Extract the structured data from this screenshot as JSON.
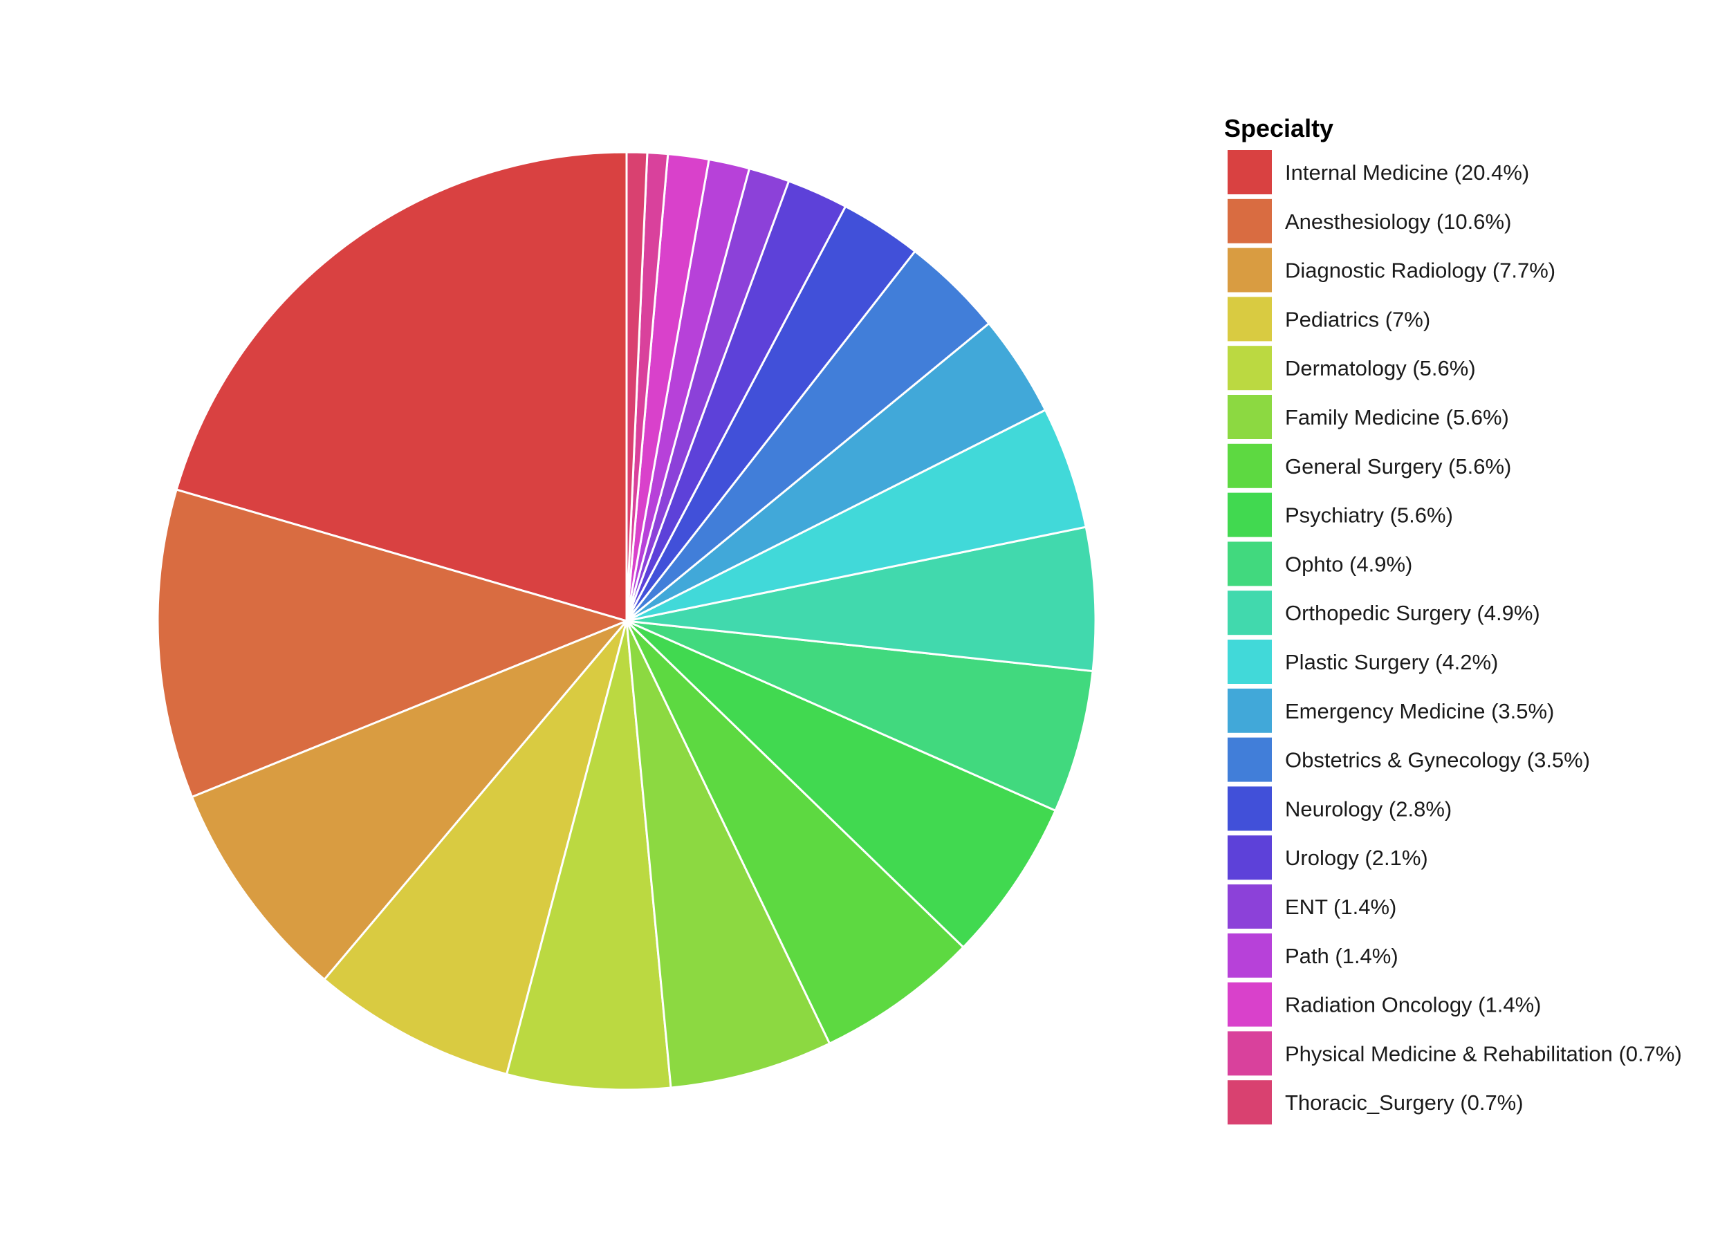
{
  "chart_data": {
    "type": "pie",
    "legend_title": "Specialty",
    "legend_position": "right",
    "start_angle": "12 o'clock",
    "direction": "counterclockwise",
    "slices": [
      {
        "label": "Internal Medicine (20.4%)",
        "value": 20.4,
        "color": "#D94141"
      },
      {
        "label": "Anesthesiology (10.6%)",
        "value": 10.6,
        "color": "#D96C41"
      },
      {
        "label": "Diagnostic Radiology (7.7%)",
        "value": 7.7,
        "color": "#D99C41"
      },
      {
        "label": "Pediatrics (7%)",
        "value": 7.0,
        "color": "#D9CB41"
      },
      {
        "label": "Dermatology (5.6%)",
        "value": 5.6,
        "color": "#BBD941"
      },
      {
        "label": "Family Medicine (5.6%)",
        "value": 5.6,
        "color": "#8CD941"
      },
      {
        "label": "General Surgery (5.6%)",
        "value": 5.6,
        "color": "#5DD941"
      },
      {
        "label": "Psychiatry (5.6%)",
        "value": 5.6,
        "color": "#41D950"
      },
      {
        "label": "Ophto (4.9%)",
        "value": 4.9,
        "color": "#41D97E"
      },
      {
        "label": "Orthopedic Surgery (4.9%)",
        "value": 4.9,
        "color": "#41D9AD"
      },
      {
        "label": "Plastic Surgery (4.2%)",
        "value": 4.2,
        "color": "#41D9D9"
      },
      {
        "label": "Emergency Medicine (3.5%)",
        "value": 3.5,
        "color": "#41A8D9"
      },
      {
        "label": "Obstetrics & Gynecology (3.5%)",
        "value": 3.5,
        "color": "#417ED9"
      },
      {
        "label": "Neurology (2.8%)",
        "value": 2.8,
        "color": "#4150D9"
      },
      {
        "label": "Urology (2.1%)",
        "value": 2.1,
        "color": "#5D41D9"
      },
      {
        "label": "ENT (1.4%)",
        "value": 1.4,
        "color": "#8C41D9"
      },
      {
        "label": "Path (1.4%)",
        "value": 1.4,
        "color": "#B741D9"
      },
      {
        "label": "Radiation Oncology (1.4%)",
        "value": 1.4,
        "color": "#D941CB"
      },
      {
        "label": "Physical Medicine & Rehabilitation (0.7%)",
        "value": 0.7,
        "color": "#D9419C"
      },
      {
        "label": "Thoracic_Surgery (0.7%)",
        "value": 0.7,
        "color": "#D94170"
      }
    ]
  }
}
